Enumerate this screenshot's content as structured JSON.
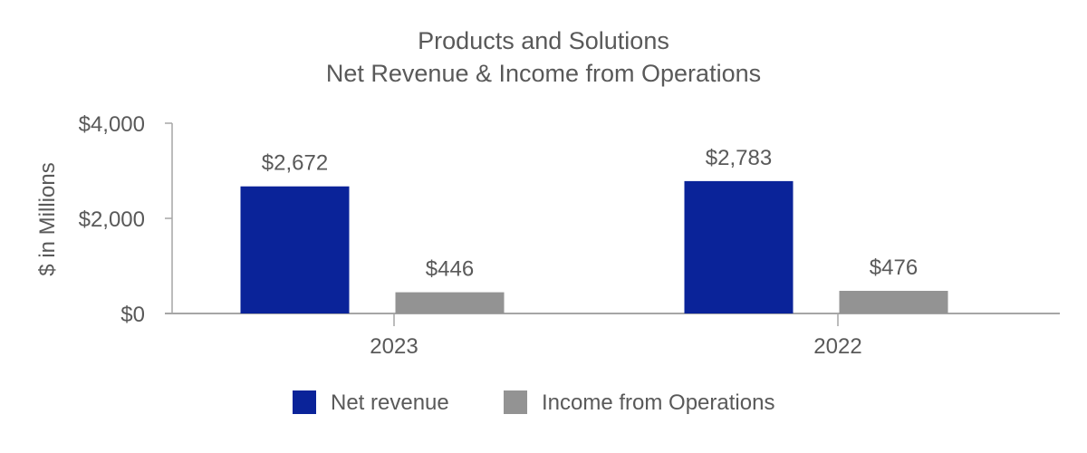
{
  "chart_data": {
    "type": "bar",
    "title": "Products and Solutions",
    "subtitle": "Net Revenue & Income from Operations",
    "xlabel": "",
    "ylabel": "$ in Millions",
    "ylim": [
      0,
      4000
    ],
    "yticks": [
      0,
      2000,
      4000
    ],
    "ytick_labels": [
      "$0",
      "$2,000",
      "$4,000"
    ],
    "categories": [
      "2023",
      "2022"
    ],
    "series": [
      {
        "name": "Net revenue",
        "color": "#0a2399",
        "values": [
          2672,
          2783
        ],
        "labels": [
          "$2,672",
          "$2,783"
        ]
      },
      {
        "name": "Income from Operations",
        "color": "#939393",
        "values": [
          446,
          476
        ],
        "labels": [
          "$446",
          "$476"
        ]
      }
    ],
    "grid": false,
    "legend": "bottom"
  }
}
